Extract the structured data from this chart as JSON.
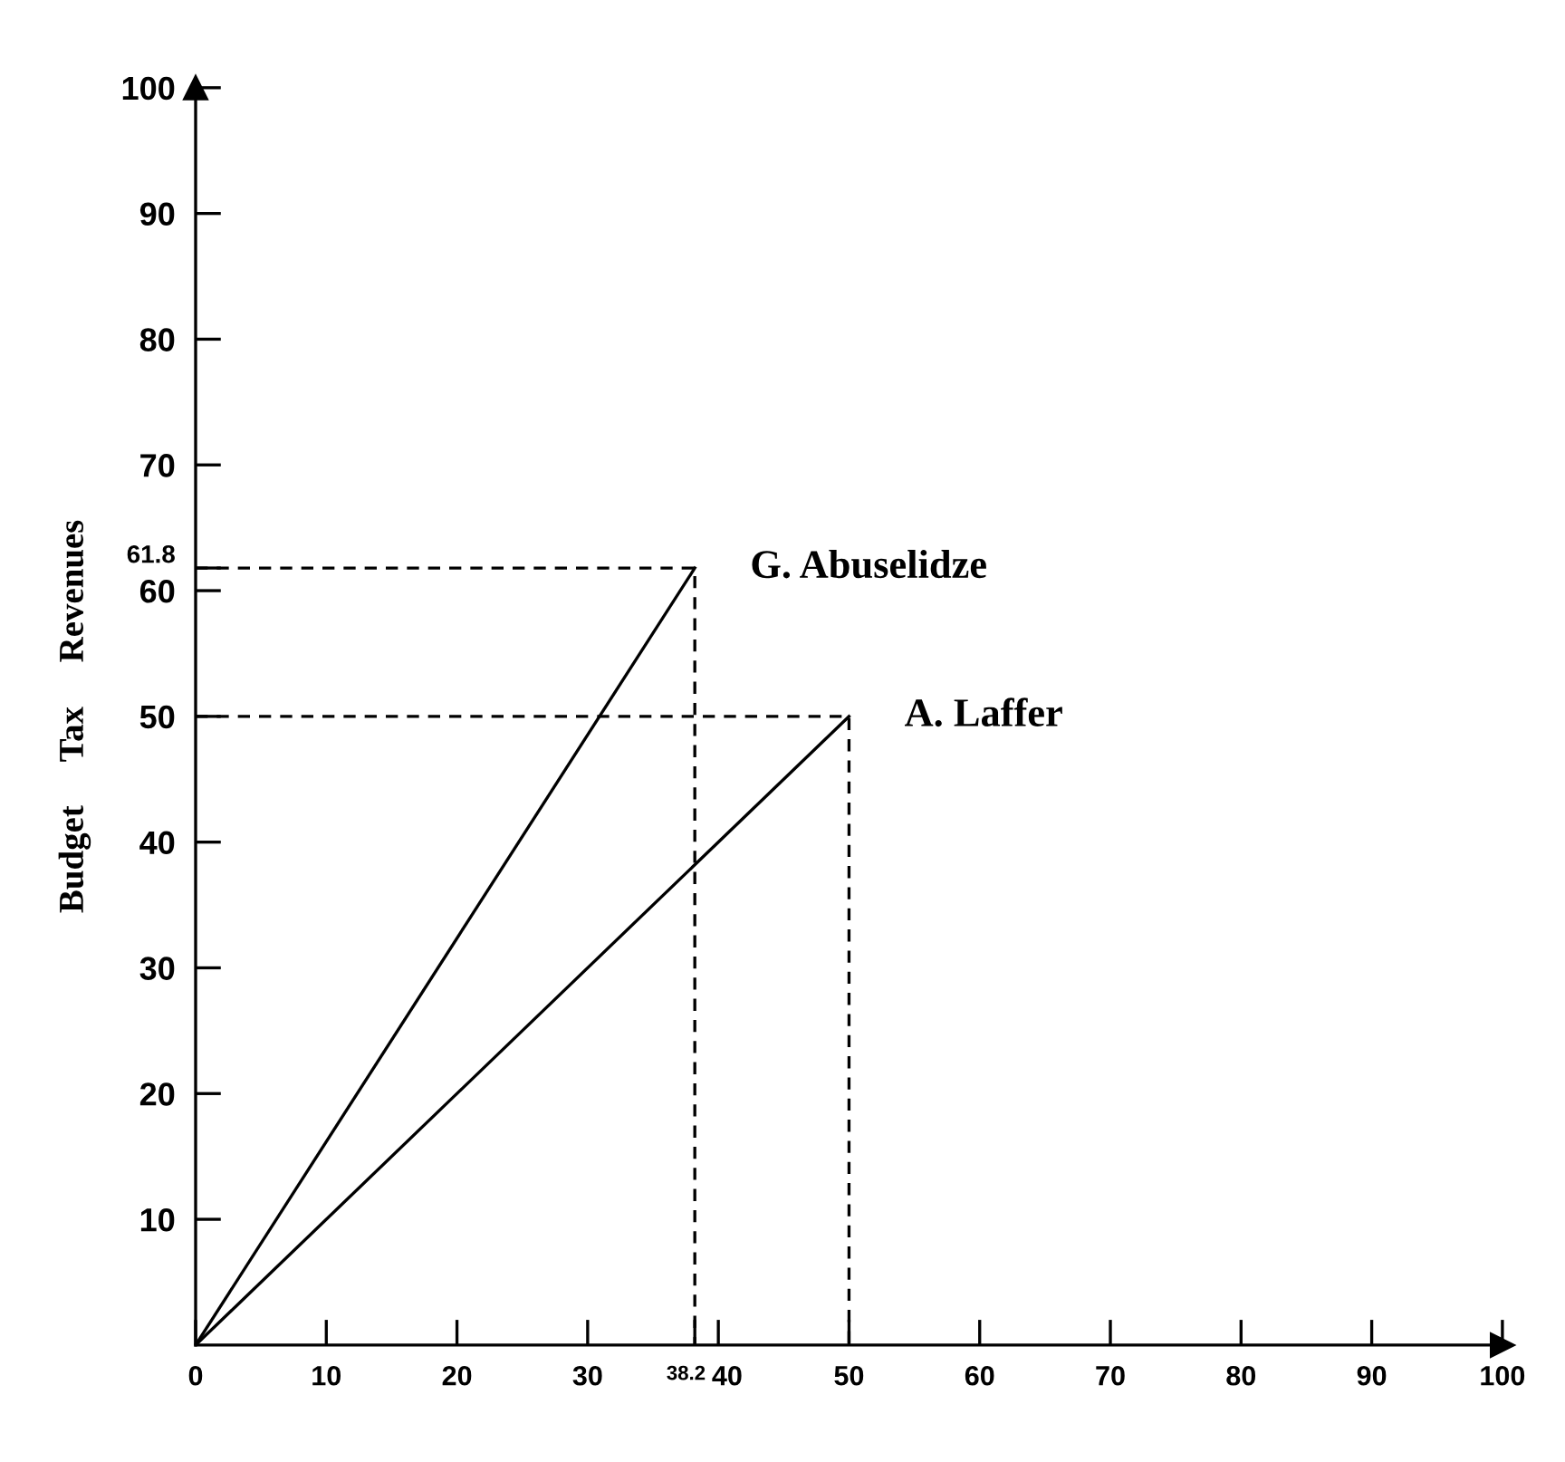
{
  "chart_data": {
    "type": "line",
    "ylabel": "Budget     Tax     Revenues",
    "xlim": [
      0,
      100
    ],
    "ylim": [
      0,
      100
    ],
    "xticks": [
      0,
      10,
      20,
      30,
      38.2,
      40,
      50,
      60,
      70,
      80,
      90,
      100
    ],
    "yticks": [
      10,
      20,
      30,
      40,
      50,
      60,
      61.8,
      70,
      80,
      90,
      100
    ],
    "grid": false,
    "marker": "none",
    "series": [
      {
        "color": "#000000",
        "x": [
          0,
          38.2
        ],
        "values": [
          0,
          61.8
        ],
        "line_style": "solid"
      },
      {
        "color": "#000000",
        "x": [
          0,
          50
        ],
        "values": [
          0,
          50
        ],
        "line_style": "solid"
      },
      {
        "color": "#000000",
        "x": [
          0,
          38.2,
          38.2
        ],
        "values": [
          61.8,
          61.8,
          0
        ],
        "line_style": "dashed"
      },
      {
        "color": "#000000",
        "x": [
          0,
          50,
          50
        ],
        "values": [
          50,
          50,
          0
        ],
        "line_style": "dashed"
      }
    ],
    "annotations": [
      {
        "text": "G. Abuselidze",
        "x": 38.2,
        "y": 61.8
      },
      {
        "text": "A. Laffer",
        "x": 50,
        "y": 50
      }
    ]
  }
}
